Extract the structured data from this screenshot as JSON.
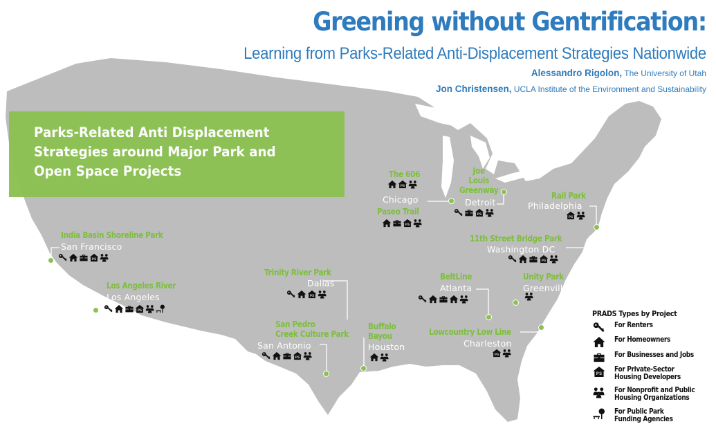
{
  "header": {
    "title": "Greening without Gentrification:",
    "subtitle": "Learning from Parks-Related Anti-Displacement Strategies Nationwide",
    "authors": [
      {
        "name": "Alessandro Rigolon,",
        "affiliation": "The University of Utah"
      },
      {
        "name": "Jon Christensen,",
        "affiliation": "UCLA Institute of the Environment and Sustainability"
      }
    ]
  },
  "banner": {
    "text": "Parks-Related Anti Displacement\nStrategies around Major Park and\nOpen Space Projects"
  },
  "colors": {
    "title_blue": "#2e7bbd",
    "banner_green": "#8cc152",
    "park_green": "#7dbf3c",
    "land_gray": "#bdbdbd",
    "icon_black": "#111111"
  },
  "projects": [
    {
      "park": "India Basin Shoreline Park",
      "city": "San Francisco",
      "types": [
        "renters",
        "homeowners",
        "businesses",
        "private-developers",
        "nonprofit"
      ]
    },
    {
      "park": "Los Angeles River",
      "city": "Los Angeles",
      "types": [
        "renters",
        "homeowners",
        "businesses",
        "private-developers",
        "nonprofit",
        "park-funding"
      ]
    },
    {
      "park": "Trinity River Park",
      "city": "Dallas",
      "types": [
        "renters",
        "homeowners",
        "private-developers",
        "nonprofit"
      ]
    },
    {
      "park": "San Pedro\nCreek Culture Park",
      "city": "San Antonio",
      "types": [
        "renters",
        "homeowners",
        "businesses",
        "private-developers",
        "nonprofit"
      ]
    },
    {
      "park": "Buffalo\nBayou",
      "city": "Houston",
      "types": [
        "homeowners",
        "nonprofit"
      ]
    },
    {
      "park": "The 606",
      "city": "Chicago",
      "types": [
        "homeowners",
        "private-developers",
        "nonprofit"
      ]
    },
    {
      "park": "Paseo Trail",
      "city": "",
      "types": [
        "homeowners",
        "businesses",
        "private-developers",
        "nonprofit"
      ]
    },
    {
      "park": "Joe\nLouis\nGreenway",
      "city": "Detroit",
      "types": [
        "renters",
        "businesses",
        "private-developers",
        "nonprofit"
      ]
    },
    {
      "park": "Rail Park",
      "city": "Philadelphia",
      "types": [
        "private-developers",
        "nonprofit"
      ]
    },
    {
      "park": "11th Street Bridge Park",
      "city": "Washington DC",
      "types": [
        "renters",
        "homeowners",
        "businesses",
        "private-developers",
        "nonprofit"
      ]
    },
    {
      "park": "BeltLine",
      "city": "Atlanta",
      "types": [
        "renters",
        "homeowners",
        "businesses",
        "homeowners",
        "nonprofit"
      ]
    },
    {
      "park": "Unity Park",
      "city": "Greenville",
      "types": [
        "nonprofit"
      ]
    },
    {
      "park": "Lowcountry Low Line",
      "city": "Charleston",
      "types": [
        "private-developers",
        "nonprofit"
      ]
    }
  ],
  "legend": {
    "title": "PRADS Types by Project",
    "items": [
      {
        "icon": "key-icon",
        "label": "For Renters"
      },
      {
        "icon": "house-icon",
        "label": "For Homeowners"
      },
      {
        "icon": "briefcase-icon",
        "label": "For Businesses and Jobs"
      },
      {
        "icon": "ps-house-icon",
        "label": "For Private-Sector\nHousing Developers"
      },
      {
        "icon": "people-icon",
        "label": "For Nonprofit and Public\nHousing Organizations"
      },
      {
        "icon": "tree-bench-icon",
        "label": "For Public Park\nFunding Agencies"
      }
    ]
  }
}
